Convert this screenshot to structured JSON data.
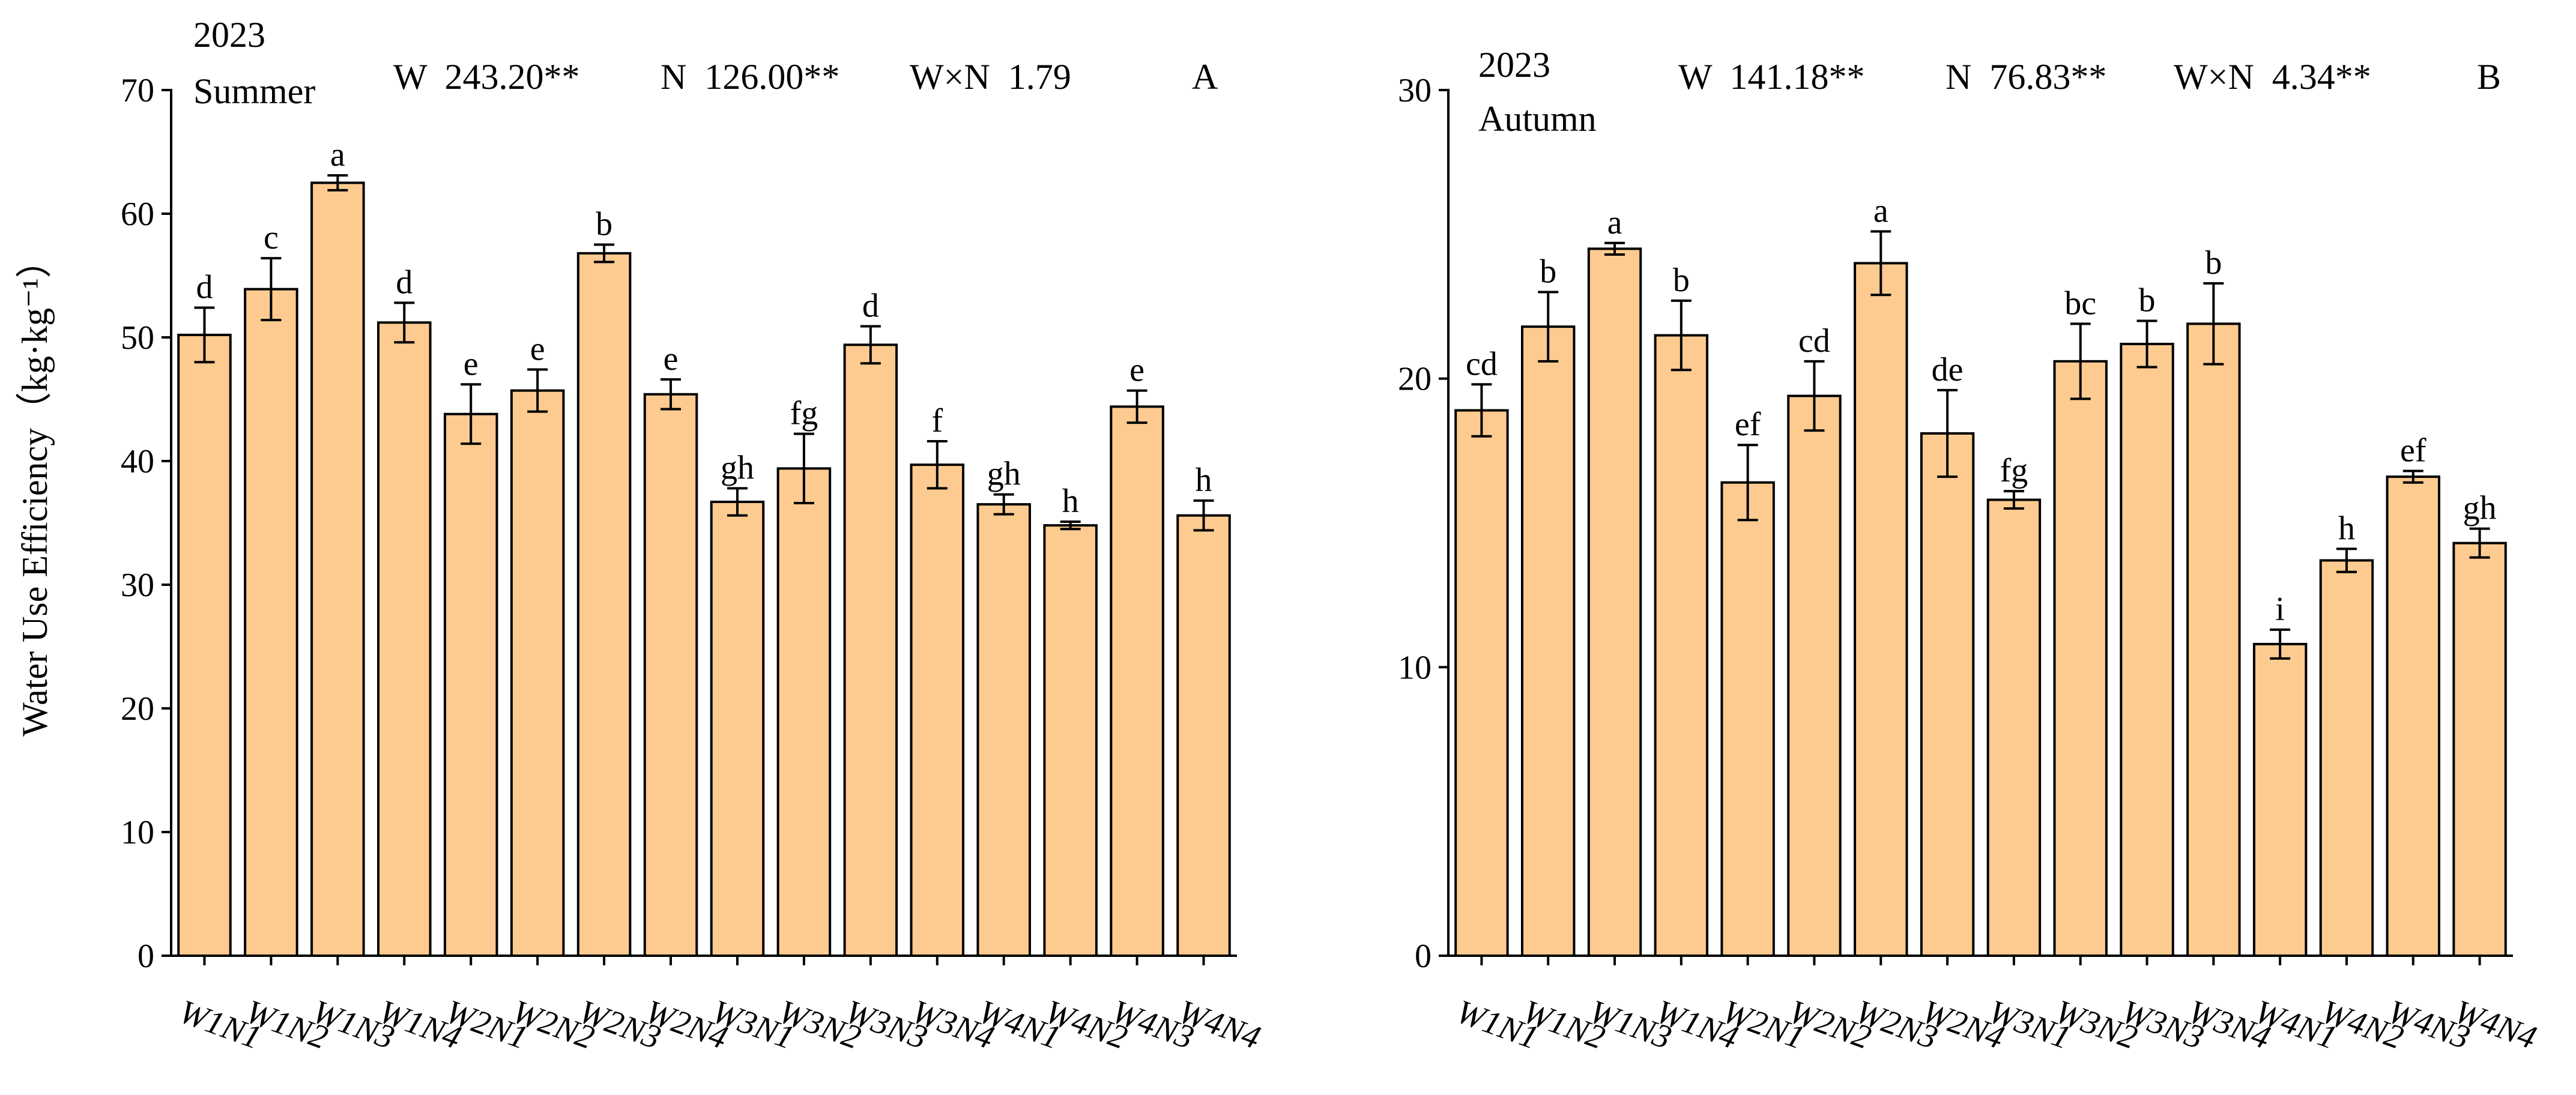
{
  "chart_data": [
    {
      "type": "bar",
      "panel": "A",
      "year": "2023",
      "season": "Summer",
      "stats": [
        "W  243.20**",
        "N  126.00**",
        "W×N  1.79"
      ],
      "ylabel": "Water Use Efficiency（kg·kg⁻¹）",
      "ylim": [
        0,
        70
      ],
      "yticks": [
        0,
        10,
        20,
        30,
        40,
        50,
        60,
        70
      ],
      "bar_color": "#FDCB90",
      "categories": [
        "W1N1",
        "W1N2",
        "W1N3",
        "W1N4",
        "W2N1",
        "W2N2",
        "W2N3",
        "W2N4",
        "W3N1",
        "W3N2",
        "W3N3",
        "W3N4",
        "W4N1",
        "W4N2",
        "W4N3",
        "W4N4"
      ],
      "values": [
        50.2,
        53.9,
        62.5,
        51.2,
        43.8,
        45.7,
        56.8,
        45.4,
        36.7,
        39.4,
        49.4,
        39.7,
        36.5,
        34.8,
        44.4,
        35.6
      ],
      "errors": [
        2.2,
        2.5,
        0.6,
        1.6,
        2.4,
        1.7,
        0.7,
        1.2,
        1.1,
        2.8,
        1.5,
        1.9,
        0.8,
        0.3,
        1.3,
        1.2
      ],
      "letters": [
        "d",
        "c",
        "a",
        "d",
        "e",
        "e",
        "b",
        "e",
        "gh",
        "fg",
        "d",
        "f",
        "gh",
        "h",
        "e",
        "h"
      ]
    },
    {
      "type": "bar",
      "panel": "B",
      "year": "2023",
      "season": "Autumn",
      "stats": [
        "W  141.18**",
        "N  76.83**",
        "W×N  4.34**"
      ],
      "ylabel": "",
      "ylim": [
        0,
        30
      ],
      "yticks": [
        0,
        10,
        20,
        30
      ],
      "bar_color": "#FDCB90",
      "categories": [
        "W1N1",
        "W1N2",
        "W1N3",
        "W1N4",
        "W2N1",
        "W2N2",
        "W2N3",
        "W2N4",
        "W3N1",
        "W3N2",
        "W3N3",
        "W3N4",
        "W4N1",
        "W4N2",
        "W4N3",
        "W4N4"
      ],
      "values": [
        18.9,
        21.8,
        24.5,
        21.5,
        16.4,
        19.4,
        24.0,
        18.1,
        15.8,
        20.6,
        21.2,
        21.9,
        10.8,
        13.7,
        16.6,
        14.3
      ],
      "errors": [
        0.9,
        1.2,
        0.2,
        1.2,
        1.3,
        1.2,
        1.1,
        1.5,
        0.3,
        1.3,
        0.8,
        1.4,
        0.5,
        0.4,
        0.2,
        0.5
      ],
      "letters": [
        "cd",
        "b",
        "a",
        "b",
        "ef",
        "cd",
        "a",
        "de",
        "fg",
        "bc",
        "b",
        "b",
        "i",
        "h",
        "ef",
        "gh"
      ]
    }
  ]
}
